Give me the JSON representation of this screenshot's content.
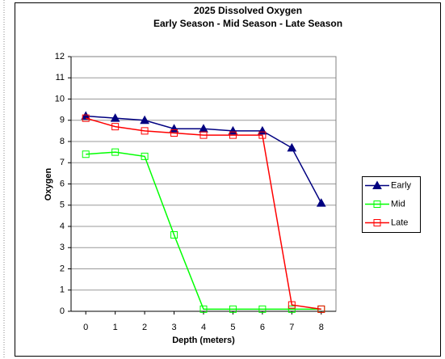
{
  "chart_data": {
    "type": "line",
    "title": "2025  Dissolved Oxygen",
    "subtitle": "Early Season - Mid Season - Late Season",
    "x_label": "Depth (meters)",
    "y_label": "Oxygen",
    "x": [
      0,
      1,
      2,
      3,
      4,
      5,
      6,
      7,
      8
    ],
    "xlim": [
      -0.5,
      8.5
    ],
    "xticks": [
      0,
      1,
      2,
      3,
      4,
      5,
      6,
      7,
      8
    ],
    "ylim": [
      0,
      12
    ],
    "yticks": [
      0,
      1,
      2,
      3,
      4,
      5,
      6,
      7,
      8,
      9,
      10,
      11,
      12
    ],
    "grid": true,
    "legend": "right",
    "series": [
      {
        "name": "Early",
        "color": "#000080",
        "marker": "triangle",
        "values": [
          9.2,
          9.1,
          9.0,
          8.6,
          8.6,
          8.5,
          8.5,
          7.7,
          5.1
        ]
      },
      {
        "name": "Mid",
        "color": "#00ff00",
        "marker": "square",
        "values": [
          7.4,
          7.5,
          7.3,
          3.6,
          0.1,
          0.1,
          0.1,
          0.1,
          0.1
        ]
      },
      {
        "name": "Late",
        "color": "#ff0000",
        "marker": "square",
        "values": [
          9.1,
          8.7,
          8.5,
          8.4,
          8.3,
          8.3,
          8.3,
          0.3,
          0.1
        ]
      }
    ]
  }
}
